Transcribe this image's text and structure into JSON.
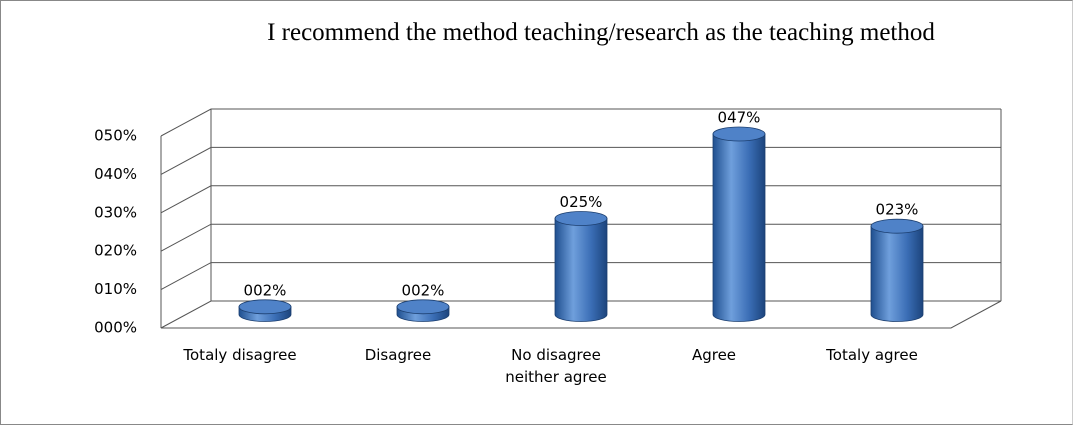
{
  "chart_data": {
    "type": "bar",
    "title": "I recommend the method teaching/research as the teaching method",
    "categories": [
      "Totaly disagree",
      "Disagree",
      "No disagree neither agree",
      "Agree",
      "Totaly agree"
    ],
    "values": [
      2,
      2,
      25,
      47,
      23
    ],
    "value_labels": [
      "002%",
      "002%",
      "025%",
      "047%",
      "023%"
    ],
    "color": "#3a6db5",
    "ylim": [
      0,
      50
    ],
    "yticks": [
      {
        "value": 0,
        "label": "000%"
      },
      {
        "value": 10,
        "label": "010%"
      },
      {
        "value": 20,
        "label": "020%"
      },
      {
        "value": 30,
        "label": "030%"
      },
      {
        "value": 40,
        "label": "040%"
      },
      {
        "value": 50,
        "label": "050%"
      }
    ],
    "grid": true
  }
}
